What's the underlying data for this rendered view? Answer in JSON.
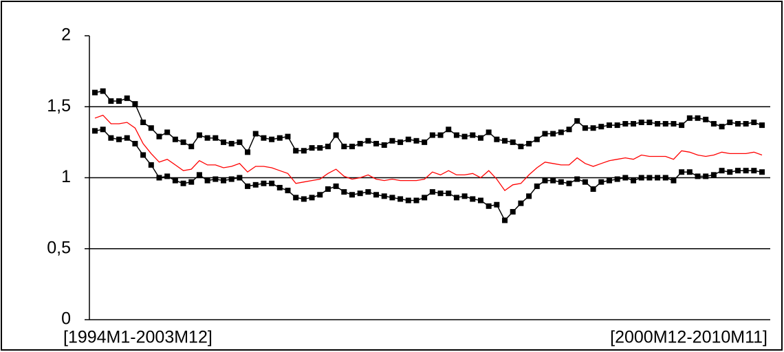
{
  "chart_data": {
    "type": "line",
    "categories": [
      "[1994M1-2003M12]",
      null,
      null,
      null,
      null,
      null,
      null,
      null,
      null,
      null,
      null,
      null,
      null,
      null,
      null,
      null,
      null,
      null,
      null,
      null,
      null,
      null,
      null,
      null,
      null,
      null,
      null,
      null,
      null,
      null,
      null,
      null,
      null,
      null,
      null,
      null,
      null,
      null,
      null,
      null,
      null,
      null,
      null,
      null,
      null,
      null,
      null,
      null,
      null,
      null,
      null,
      null,
      null,
      null,
      null,
      null,
      null,
      null,
      null,
      null,
      null,
      null,
      null,
      null,
      null,
      null,
      null,
      null,
      null,
      null,
      null,
      null,
      null,
      null,
      null,
      null,
      null,
      null,
      null,
      null,
      null,
      null,
      null,
      "[2000M12-2010M11]"
    ],
    "series": [
      {
        "color": "#000000",
        "marker": "square",
        "values": [
          1.6,
          1.61,
          1.54,
          1.54,
          1.56,
          1.52,
          1.39,
          1.35,
          1.29,
          1.32,
          1.27,
          1.25,
          1.22,
          1.3,
          1.28,
          1.28,
          1.25,
          1.24,
          1.25,
          1.18,
          1.31,
          1.28,
          1.27,
          1.28,
          1.29,
          1.19,
          1.19,
          1.21,
          1.21,
          1.22,
          1.3,
          1.22,
          1.22,
          1.24,
          1.26,
          1.24,
          1.23,
          1.26,
          1.25,
          1.27,
          1.26,
          1.25,
          1.3,
          1.3,
          1.34,
          1.3,
          1.29,
          1.3,
          1.28,
          1.32,
          1.27,
          1.26,
          1.25,
          1.22,
          1.24,
          1.27,
          1.31,
          1.31,
          1.32,
          1.34,
          1.4,
          1.35,
          1.35,
          1.36,
          1.37,
          1.37,
          1.38,
          1.38,
          1.39,
          1.39,
          1.38,
          1.38,
          1.38,
          1.37,
          1.42,
          1.42,
          1.41,
          1.38,
          1.36,
          1.39,
          1.38,
          1.38,
          1.39,
          1.37
        ]
      },
      {
        "color": "#ff0000",
        "values": [
          1.42,
          1.44,
          1.38,
          1.38,
          1.39,
          1.35,
          1.24,
          1.17,
          1.11,
          1.13,
          1.09,
          1.05,
          1.06,
          1.12,
          1.09,
          1.09,
          1.07,
          1.08,
          1.1,
          1.04,
          1.08,
          1.08,
          1.07,
          1.05,
          1.03,
          0.96,
          0.97,
          0.98,
          0.99,
          1.03,
          1.06,
          1.01,
          0.99,
          1.0,
          1.02,
          0.99,
          0.98,
          0.99,
          0.98,
          0.98,
          0.98,
          0.99,
          1.04,
          1.02,
          1.05,
          1.02,
          1.02,
          1.03,
          1.0,
          1.05,
          0.99,
          0.91,
          0.95,
          0.96,
          1.02,
          1.07,
          1.11,
          1.1,
          1.09,
          1.09,
          1.14,
          1.1,
          1.08,
          1.1,
          1.12,
          1.13,
          1.14,
          1.13,
          1.16,
          1.15,
          1.15,
          1.15,
          1.13,
          1.19,
          1.18,
          1.16,
          1.15,
          1.16,
          1.18,
          1.17,
          1.17,
          1.17,
          1.18,
          1.16
        ]
      },
      {
        "color": "#000000",
        "marker": "square",
        "values": [
          1.33,
          1.34,
          1.28,
          1.27,
          1.28,
          1.24,
          1.16,
          1.09,
          1.0,
          1.01,
          0.98,
          0.96,
          0.97,
          1.02,
          0.98,
          0.99,
          0.98,
          0.99,
          1.0,
          0.94,
          0.95,
          0.96,
          0.96,
          0.93,
          0.91,
          0.86,
          0.85,
          0.86,
          0.88,
          0.92,
          0.94,
          0.9,
          0.88,
          0.89,
          0.9,
          0.88,
          0.87,
          0.86,
          0.85,
          0.84,
          0.84,
          0.86,
          0.9,
          0.89,
          0.89,
          0.86,
          0.87,
          0.85,
          0.84,
          0.8,
          0.81,
          0.7,
          0.76,
          0.82,
          0.87,
          0.94,
          0.98,
          0.98,
          0.97,
          0.96,
          0.99,
          0.97,
          0.92,
          0.97,
          0.98,
          0.99,
          1.0,
          0.98,
          1.0,
          1.0,
          1.0,
          1.0,
          0.98,
          1.04,
          1.04,
          1.01,
          1.01,
          1.02,
          1.05,
          1.04,
          1.05,
          1.05,
          1.05,
          1.04
        ]
      }
    ],
    "ylim": [
      0,
      2
    ],
    "yticks": [
      0,
      {
        "value": 0.5,
        "label": "0,5"
      },
      1,
      {
        "value": 1.5,
        "label": "1,5"
      },
      2
    ],
    "grid": true
  }
}
